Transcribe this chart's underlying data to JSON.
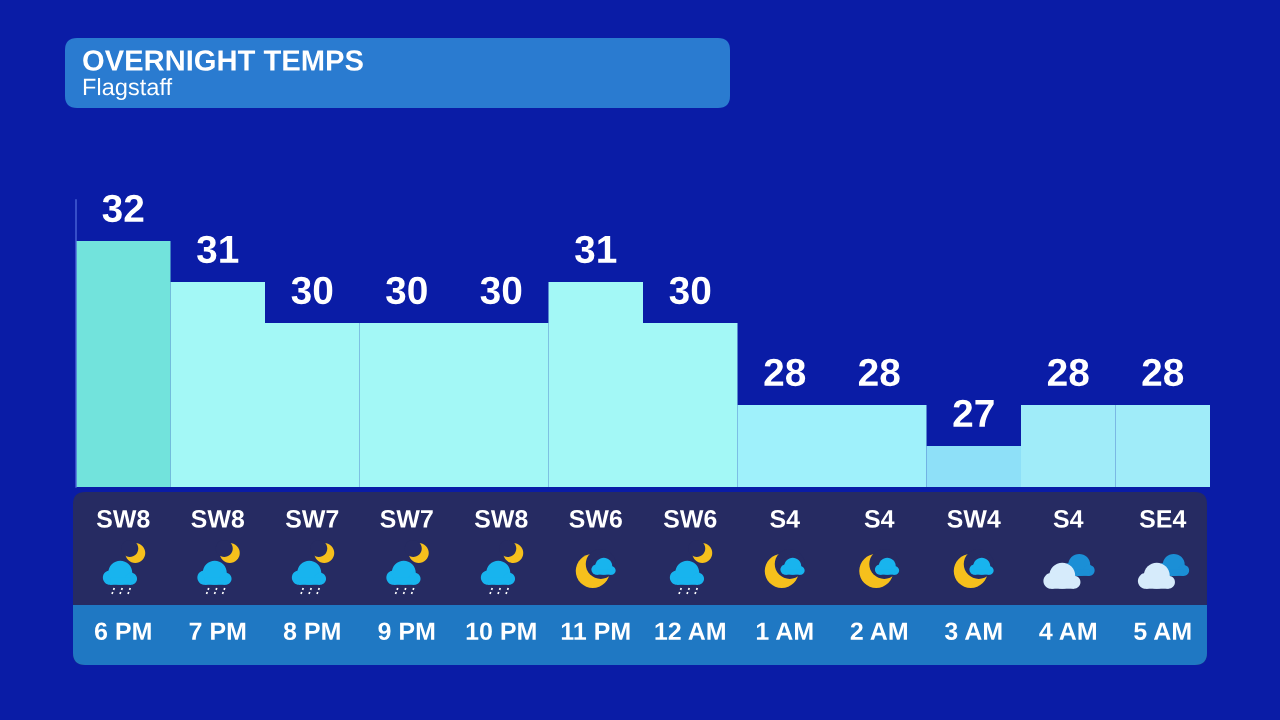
{
  "chart_data": {
    "type": "bar",
    "title": "OVERNIGHT TEMPS",
    "subtitle": "Flagstaff",
    "categories": [
      "6 PM",
      "7 PM",
      "8 PM",
      "9 PM",
      "10 PM",
      "11 PM",
      "12 AM",
      "1 AM",
      "2 AM",
      "3 AM",
      "4 AM",
      "5 AM"
    ],
    "values": [
      32,
      31,
      30,
      30,
      30,
      31,
      30,
      28,
      28,
      27,
      28,
      28
    ],
    "colors": [
      "#72e3dc",
      "#a3f8f6",
      "#a3f8f6",
      "#a3f8f6",
      "#a3f8f6",
      "#a3f8f6",
      "#a3f8f6",
      "#9ff1fb",
      "#9ff1fb",
      "#8ee0f8",
      "#a0ecf9",
      "#a0ecf9"
    ],
    "ylim": [
      26,
      33
    ],
    "data_labels": true,
    "tick_labels": "x",
    "annotations": [
      "SW8",
      "SW8",
      "SW7",
      "SW7",
      "SW8",
      "SW6",
      "SW6",
      "S4",
      "S4",
      "SW4",
      "S4",
      "SE4"
    ]
  }
}
